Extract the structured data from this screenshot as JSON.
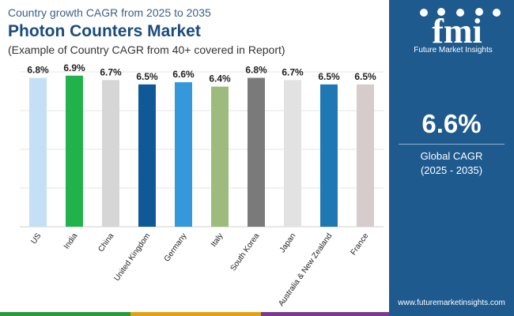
{
  "header": {
    "kicker": "Country growth CAGR from 2025 to 2035",
    "title": "Photon Counters Market",
    "subtitle": "(Example of Country CAGR from 40+ covered in Report)"
  },
  "brand": {
    "logo_text": "fmi",
    "name": "Future Market Insights",
    "url": "www.futuremarketinsights.com"
  },
  "summary": {
    "value": "6.6%",
    "label": "Global CAGR",
    "period": "(2025 - 2035)"
  },
  "colors": {
    "title": "#1b4b7d",
    "panel": "#1e5a8e",
    "footer_bars": [
      "#2a9a3a",
      "#e0a21a",
      "#7a3b8c",
      "#1e5a8e"
    ]
  },
  "chart_data": {
    "type": "bar",
    "categories": [
      "US",
      "India",
      "China",
      "United Kingdom",
      "Germany",
      "Italy",
      "South Korea",
      "Japan",
      "Australia & New Zealand",
      "France"
    ],
    "values": [
      6.8,
      6.9,
      6.7,
      6.5,
      6.6,
      6.4,
      6.8,
      6.7,
      6.5,
      6.5
    ],
    "value_labels": [
      "6.8%",
      "6.9%",
      "6.7%",
      "6.5%",
      "6.6%",
      "6.4%",
      "6.8%",
      "6.7%",
      "6.5%",
      "6.5%"
    ],
    "bar_colors": [
      "#c5e0f5",
      "#22b24c",
      "#d6d6d6",
      "#0f5a96",
      "#3498db",
      "#9dbb7d",
      "#7a7a7a",
      "#e2e2e2",
      "#1f78b4",
      "#d6cccc"
    ],
    "ylim": [
      0,
      7
    ],
    "grid": true,
    "legend": "none"
  }
}
